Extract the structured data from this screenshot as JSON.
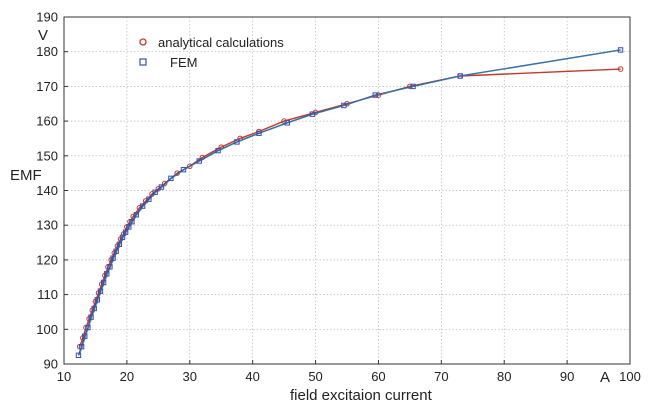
{
  "chart_data": {
    "type": "line",
    "title": "",
    "xlabel": "field excitaion current",
    "ylabel": "EMF",
    "x_unit": "A",
    "y_unit": "V",
    "xlim": [
      10,
      100
    ],
    "ylim": [
      90,
      190
    ],
    "xticks": [
      10,
      20,
      30,
      40,
      50,
      60,
      70,
      80,
      90,
      100
    ],
    "yticks": [
      90,
      100,
      110,
      120,
      130,
      140,
      150,
      160,
      170,
      180,
      190
    ],
    "grid": true,
    "legend_position": "top-left",
    "series": [
      {
        "name": "analytical calculations",
        "color": "#c0392b",
        "marker": "circle",
        "x": [
          12.5,
          13.0,
          13.5,
          14.0,
          14.5,
          15.0,
          15.5,
          16.0,
          16.5,
          17.0,
          17.5,
          18.0,
          18.5,
          19.0,
          19.5,
          20.0,
          20.5,
          21.0,
          22.0,
          23.0,
          24.0,
          25.0,
          26.0,
          28.0,
          30.0,
          32.0,
          35.0,
          38.0,
          41.0,
          45.0,
          50.0,
          55.0,
          60.0,
          65.0,
          73.0,
          98.5
        ],
        "y": [
          95,
          97.5,
          100.5,
          103,
          105.5,
          108,
          110.5,
          113,
          115.5,
          118,
          120,
          122,
          124,
          126,
          127.5,
          129.5,
          131,
          132.5,
          135,
          137,
          139,
          140.5,
          142,
          145,
          147,
          149.5,
          152.5,
          155,
          157,
          160,
          162.5,
          165,
          167.5,
          170,
          173,
          175
        ]
      },
      {
        "name": "FEM",
        "color": "#3a4fb0",
        "marker": "square",
        "x": [
          12.3,
          12.8,
          13.3,
          13.8,
          14.3,
          14.8,
          15.3,
          15.8,
          16.3,
          16.8,
          17.3,
          17.8,
          18.3,
          18.8,
          19.3,
          19.8,
          20.3,
          20.8,
          21.5,
          22.5,
          23.5,
          24.5,
          25.5,
          27.0,
          29.0,
          31.5,
          34.5,
          37.5,
          41.0,
          45.5,
          49.5,
          54.5,
          59.5,
          65.5,
          73.0,
          98.5
        ],
        "y": [
          92.5,
          95,
          98,
          100.5,
          103.5,
          106,
          108.5,
          111,
          113.5,
          116,
          118,
          120.5,
          122.5,
          124.5,
          126.5,
          128,
          129.5,
          131,
          133,
          135.5,
          137.5,
          139.5,
          141,
          143.5,
          146,
          148.5,
          151.5,
          154,
          156.5,
          159.5,
          162,
          164.5,
          167.5,
          170,
          173,
          180.5
        ]
      }
    ]
  }
}
